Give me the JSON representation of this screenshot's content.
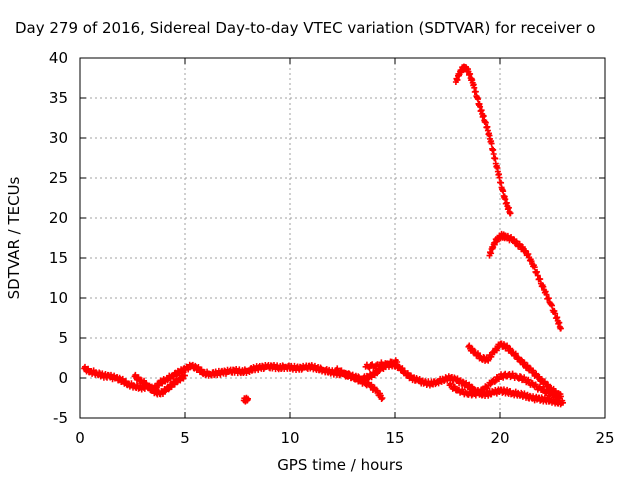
{
  "chart_data": {
    "type": "scatter",
    "title": "Day 279 of 2016, Sidereal Day-to-day VTEC variation (SDTVAR) for receiver o",
    "xlabel": "GPS time / hours",
    "ylabel": "SDTVAR / TECUs",
    "xlim": [
      0,
      25
    ],
    "ylim": [
      -5,
      40
    ],
    "xticks": [
      0,
      5,
      10,
      15,
      20,
      25
    ],
    "yticks": [
      -5,
      0,
      5,
      10,
      15,
      20,
      25,
      30,
      35,
      40
    ],
    "grid": true,
    "marker": "plus",
    "color": "#ff0000",
    "series": [
      {
        "x": [
          0.2,
          0.5,
          0.8,
          1.1,
          1.4,
          1.7,
          2.0,
          2.3,
          2.6,
          2.9,
          3.2,
          3.5,
          3.8,
          4.1,
          4.4,
          4.7,
          5.0,
          5.3,
          5.6,
          5.9,
          6.2,
          6.5,
          6.8,
          7.1,
          7.4,
          7.7,
          8.0,
          8.3,
          8.6,
          8.9,
          9.2,
          9.5,
          9.8,
          10.1,
          10.4,
          10.7,
          11.0,
          11.3,
          11.6,
          11.9,
          12.2,
          12.5,
          12.8,
          13.1,
          13.4,
          13.7,
          14.0,
          14.3,
          14.6,
          14.9,
          15.2,
          15.5,
          15.8,
          16.1,
          16.4,
          16.7,
          17.0,
          17.3,
          17.6,
          17.9,
          18.2,
          18.5,
          18.8,
          19.1,
          19.4,
          19.7,
          20.0,
          20.3,
          20.6,
          20.9,
          21.2,
          21.5,
          21.8,
          22.1,
          22.4,
          22.7,
          23.0
        ],
        "y": [
          1.2,
          0.8,
          0.6,
          0.3,
          0.2,
          0.0,
          -0.3,
          -0.8,
          -1.0,
          -1.2,
          -1.1,
          -1.4,
          -0.6,
          -0.2,
          0.3,
          0.7,
          1.1,
          1.5,
          1.2,
          0.6,
          0.5,
          0.6,
          0.7,
          0.8,
          0.9,
          0.8,
          0.9,
          1.2,
          1.3,
          1.4,
          1.4,
          1.3,
          1.4,
          1.3,
          1.2,
          1.3,
          1.4,
          1.2,
          1.0,
          0.8,
          0.6,
          0.5,
          0.3,
          0.1,
          -0.1,
          0.1,
          0.5,
          1.1,
          1.6,
          1.7,
          1.4,
          0.6,
          0.0,
          -0.3,
          -0.6,
          -0.7,
          -0.5,
          -0.2,
          0.0,
          -0.2,
          -0.6,
          -1.0,
          -1.5,
          -2.0,
          -2.0,
          -1.8,
          -1.6,
          -1.7,
          -1.9,
          -2.0,
          -2.2,
          -2.5,
          -2.6,
          -2.7,
          -2.8,
          -3.0,
          -3.1
        ]
      },
      {
        "x": [
          2.6,
          2.9,
          3.2,
          3.5,
          3.8,
          4.1,
          4.4,
          4.7,
          5.0
        ],
        "y": [
          0.2,
          -0.3,
          -0.9,
          -1.6,
          -2.0,
          -1.5,
          -0.8,
          -0.2,
          0.3
        ]
      },
      {
        "x": [
          12.2,
          12.6,
          13.0,
          13.4,
          13.8,
          14.1,
          14.4
        ],
        "y": [
          1.0,
          0.6,
          0.1,
          -0.4,
          -0.9,
          -1.6,
          -2.5
        ]
      },
      {
        "x": [
          13.6,
          14.1,
          14.6,
          15.1
        ],
        "y": [
          1.4,
          1.6,
          1.8,
          2.0
        ]
      },
      {
        "x": [
          7.8,
          8.0
        ],
        "y": [
          -2.8,
          -2.6
        ]
      },
      {
        "x": [
          17.6,
          18.0,
          18.4,
          18.8,
          19.2,
          19.6,
          20.0,
          20.4,
          20.8,
          21.2,
          21.6,
          22.0,
          22.4,
          22.8
        ],
        "y": [
          -0.9,
          -1.5,
          -1.9,
          -2.0,
          -1.5,
          -0.6,
          0.2,
          0.4,
          0.2,
          -0.2,
          -0.9,
          -1.5,
          -2.0,
          -2.4
        ]
      },
      {
        "x": [
          18.5,
          18.8,
          19.1,
          19.4,
          19.7,
          20.0,
          20.3,
          20.6,
          20.9,
          21.2,
          21.5,
          21.8,
          22.1,
          22.4,
          22.7,
          22.9
        ],
        "y": [
          3.9,
          3.2,
          2.5,
          2.3,
          3.2,
          4.2,
          3.9,
          3.2,
          2.4,
          1.6,
          0.9,
          0.1,
          -0.6,
          -1.3,
          -1.9,
          -2.3
        ]
      },
      {
        "x": [
          17.9,
          18.1,
          18.3,
          18.5,
          18.7,
          18.9,
          19.1,
          19.3,
          19.5,
          19.7,
          19.9,
          20.1,
          20.3,
          20.5
        ],
        "y": [
          37.0,
          38.3,
          38.9,
          38.3,
          36.9,
          35.1,
          33.4,
          32.0,
          30.3,
          28.0,
          25.8,
          23.6,
          21.8,
          20.6
        ]
      },
      {
        "x": [
          19.5,
          19.7,
          19.9,
          20.1,
          20.3,
          20.6,
          20.9,
          21.2,
          21.5,
          21.8,
          22.1,
          22.4,
          22.7,
          22.9
        ],
        "y": [
          15.3,
          16.7,
          17.5,
          17.8,
          17.6,
          17.3,
          16.6,
          15.9,
          14.6,
          12.8,
          11.0,
          9.3,
          7.5,
          6.2
        ]
      }
    ]
  }
}
